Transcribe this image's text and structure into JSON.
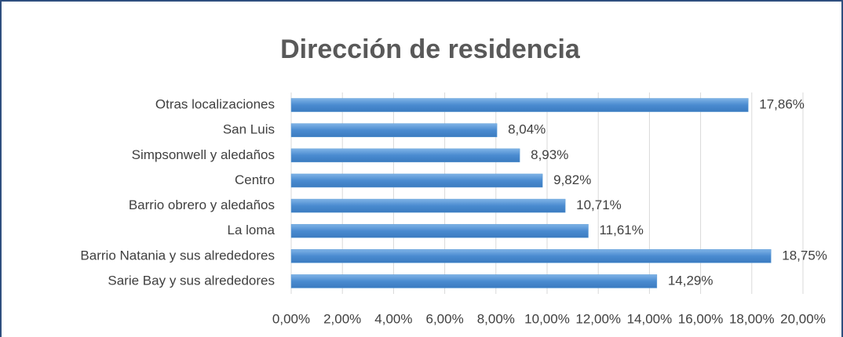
{
  "chart_data": {
    "type": "hbar",
    "title": "Dirección de residencia",
    "categories": [
      "Otras localizaciones",
      "San Luis",
      "Simpsonwell y aledaños",
      "Centro",
      "Barrio obrero y aledaños",
      "La loma",
      "Barrio Natania y sus alrededores",
      "Sarie Bay y sus alrededores"
    ],
    "values": [
      17.86,
      8.04,
      8.93,
      9.82,
      10.71,
      11.61,
      18.75,
      14.29
    ],
    "value_labels": [
      "17,86%",
      "8,04%",
      "8,93%",
      "9,82%",
      "10,71%",
      "11,61%",
      "18,75%",
      "14,29%"
    ],
    "color": "#5b9bd5",
    "xlim": [
      0,
      20
    ],
    "xticks": [
      {
        "value": 0,
        "label": "0,00%"
      },
      {
        "value": 2,
        "label": "2,00%"
      },
      {
        "value": 4,
        "label": "4,00%"
      },
      {
        "value": 6,
        "label": "6,00%"
      },
      {
        "value": 8,
        "label": "8,00%"
      },
      {
        "value": 10,
        "label": "10,00%"
      },
      {
        "value": 12,
        "label": "12,00%"
      },
      {
        "value": 14,
        "label": "14,00%"
      },
      {
        "value": 16,
        "label": "16,00%"
      },
      {
        "value": 18,
        "label": "18,00%"
      },
      {
        "value": 20,
        "label": "20,00%"
      }
    ],
    "grid": true
  }
}
